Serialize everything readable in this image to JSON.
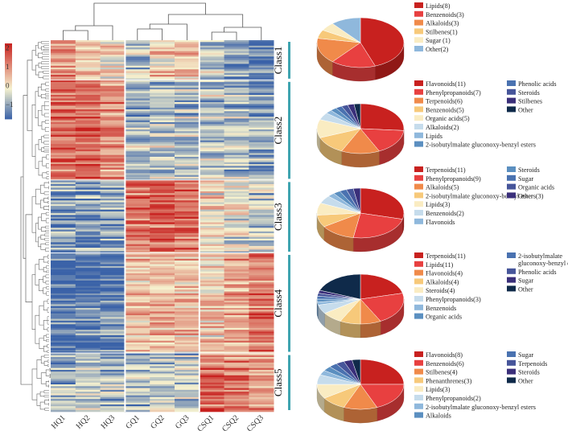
{
  "chart_data": {
    "type": "heatmap",
    "columns": [
      "HQ1",
      "HQ2",
      "HQ3",
      "GQ1",
      "GQ2",
      "GQ3",
      "CSQ1",
      "CSQ2",
      "CSQ3"
    ],
    "color_scale": {
      "ticks": [
        "2",
        "1",
        "0",
        "−1"
      ],
      "min": -1.6,
      "max": 2.4,
      "low_color": "#3a62a8",
      "mid_color": "#f6f2cf",
      "high_color": "#c8211f"
    },
    "classes": [
      {
        "name": "Class1",
        "rows": 22,
        "pattern": [
          1.3,
          0.7,
          0.3,
          -0.3,
          0.4,
          0.6,
          -0.5,
          -0.9,
          -1.3
        ]
      },
      {
        "name": "Class2",
        "rows": 55,
        "pattern": [
          1.6,
          1.7,
          1.2,
          -0.6,
          -0.5,
          -0.5,
          -0.4,
          -0.6,
          -0.8
        ]
      },
      {
        "name": "Class3",
        "rows": 40,
        "pattern": [
          -1.0,
          -1.1,
          -1.0,
          1.4,
          1.6,
          1.4,
          0.2,
          -0.2,
          -0.5
        ]
      },
      {
        "name": "Class4",
        "rows": 55,
        "pattern": [
          -1.4,
          -1.3,
          -1.2,
          0.5,
          0.7,
          0.6,
          0.5,
          0.9,
          1.4
        ]
      },
      {
        "name": "Class5",
        "rows": 32,
        "pattern": [
          -0.8,
          -0.5,
          -0.6,
          -0.6,
          -0.4,
          -0.5,
          1.6,
          1.4,
          0.9
        ]
      }
    ],
    "pies": [
      {
        "class": "Class1",
        "slices": [
          {
            "label": "Lipids(8)",
            "value": 8,
            "color": "#c8211f"
          },
          {
            "label": "Benzenoids(3)",
            "value": 3,
            "color": "#e84040"
          },
          {
            "label": "Alkaloids(3)",
            "value": 3,
            "color": "#f08a4a"
          },
          {
            "label": "Stilbenes(1)",
            "value": 1,
            "color": "#f7c97a"
          },
          {
            "label": "Sugar (1)",
            "value": 1,
            "color": "#faecc2"
          },
          {
            "label": "Other(2)",
            "value": 2,
            "color": "#8fb8dc"
          }
        ]
      },
      {
        "class": "Class2",
        "slices": [
          {
            "label": "Flavonoids(11)",
            "value": 11,
            "color": "#c8211f"
          },
          {
            "label": "Phenylpropanoids(7)",
            "value": 7,
            "color": "#e84040"
          },
          {
            "label": "Terpenoids(6)",
            "value": 6,
            "color": "#f08a4a"
          },
          {
            "label": "Benzenoids(5)",
            "value": 5,
            "color": "#f7c97a"
          },
          {
            "label": "Organic acids(5)",
            "value": 5,
            "color": "#faecc2"
          },
          {
            "label": "Alkaloids(2)",
            "value": 2,
            "color": "#c6dcec"
          },
          {
            "label": "Lipids",
            "value": 1,
            "color": "#8fb8dc"
          },
          {
            "label": "2-isobutylmalate gluconoxy-benzyl esters",
            "value": 1,
            "color": "#5b8fc0"
          },
          {
            "label": "Phenolic acids",
            "value": 1,
            "color": "#4a72b0"
          },
          {
            "label": "Steroids",
            "value": 1,
            "color": "#46559a"
          },
          {
            "label": "Stilbenes",
            "value": 1,
            "color": "#3a2f7a"
          },
          {
            "label": "Other",
            "value": 1,
            "color": "#0f2a4a"
          }
        ]
      },
      {
        "class": "Class3",
        "slices": [
          {
            "label": "Terpenoids(11)",
            "value": 11,
            "color": "#c8211f"
          },
          {
            "label": "Phenylpropanoids(9)",
            "value": 9,
            "color": "#e84040"
          },
          {
            "label": "Alkaloids(5)",
            "value": 5,
            "color": "#f08a4a"
          },
          {
            "label": "2-isobutylmalate gluconoxy-benzyl esters(3)",
            "value": 3,
            "color": "#f7c97a"
          },
          {
            "label": "Lipids(3)",
            "value": 3,
            "color": "#faecc2"
          },
          {
            "label": "Benzenoids(2)",
            "value": 2,
            "color": "#c6dcec"
          },
          {
            "label": "Flavonoids",
            "value": 1,
            "color": "#8fb8dc"
          },
          {
            "label": "Steroids",
            "value": 1,
            "color": "#5b8fc0"
          },
          {
            "label": "Sugar",
            "value": 1,
            "color": "#4a72b0"
          },
          {
            "label": "Organic acids",
            "value": 1,
            "color": "#46559a"
          },
          {
            "label": "Other",
            "value": 1,
            "color": "#3a2f7a"
          }
        ]
      },
      {
        "class": "Class4",
        "slices": [
          {
            "label": "Terpenoids(11)",
            "value": 11,
            "color": "#c8211f"
          },
          {
            "label": "Lipids(11)",
            "value": 11,
            "color": "#e84040"
          },
          {
            "label": "Flavonoids(4)",
            "value": 4,
            "color": "#f08a4a"
          },
          {
            "label": "Alkaloids(4)",
            "value": 4,
            "color": "#f7c97a"
          },
          {
            "label": "Steroids(4)",
            "value": 4,
            "color": "#faecc2"
          },
          {
            "label": "Phenylpropanoids(3)",
            "value": 3,
            "color": "#c6dcec"
          },
          {
            "label": "Benzenoids",
            "value": 1,
            "color": "#8fb8dc"
          },
          {
            "label": "Organic acids",
            "value": 1,
            "color": "#5b8fc0"
          },
          {
            "label": "2-isobutylmalate gluconoxy-benzyl esters",
            "value": 1,
            "color": "#4a72b0"
          },
          {
            "label": "Phenolic acids",
            "value": 1,
            "color": "#46559a"
          },
          {
            "label": "Sugar",
            "value": 1,
            "color": "#3a2f7a"
          },
          {
            "label": "Other",
            "value": 10,
            "color": "#0f2a4a"
          }
        ]
      },
      {
        "class": "Class5",
        "slices": [
          {
            "label": "Flavonoids(8)",
            "value": 8,
            "color": "#c8211f"
          },
          {
            "label": "Benzenoids(6)",
            "value": 6,
            "color": "#e84040"
          },
          {
            "label": "Stilbenes(4)",
            "value": 4,
            "color": "#f08a4a"
          },
          {
            "label": "Phenanthrenes(3)",
            "value": 3,
            "color": "#f7c97a"
          },
          {
            "label": "Lipids(3)",
            "value": 3,
            "color": "#faecc2"
          },
          {
            "label": "Phenylpropanoids(2)",
            "value": 2,
            "color": "#c6dcec"
          },
          {
            "label": "2-isobutylmalate gluconoxy-benzyl esters",
            "value": 1,
            "color": "#8fb8dc"
          },
          {
            "label": "Alkaloids",
            "value": 1,
            "color": "#5b8fc0"
          },
          {
            "label": "Sugar",
            "value": 1,
            "color": "#4a72b0"
          },
          {
            "label": "Terpenoids",
            "value": 1,
            "color": "#46559a"
          },
          {
            "label": "Steroids",
            "value": 1,
            "color": "#3a2f7a"
          },
          {
            "label": "Other",
            "value": 1,
            "color": "#0f2a4a"
          }
        ]
      }
    ]
  }
}
